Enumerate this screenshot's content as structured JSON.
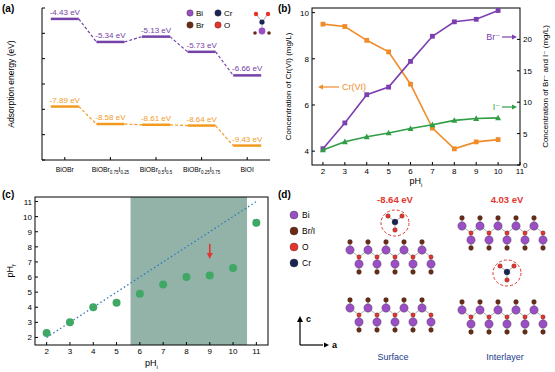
{
  "chart_data": [
    {
      "type": "level",
      "y_label": "Adsorption energy (eV)",
      "categories": [
        "BiOBr",
        "BiOBr0.75I0.25",
        "BiOBr0.5I0.5",
        "BiOBr0.25I0.75",
        "BiOI"
      ],
      "series": [
        {
          "color": "#7442a8",
          "values": [
            -4.43,
            -5.34,
            -5.13,
            -5.73,
            -6.66
          ],
          "value_labels": [
            "-4.43 eV",
            "-5.34 eV",
            "-5.13 eV",
            "-5.73 eV",
            "-6.66 eV"
          ]
        },
        {
          "color": "#f29a1f",
          "values": [
            -7.89,
            -8.58,
            -8.61,
            -8.64,
            -9.43
          ],
          "value_labels": [
            "-7.89 eV",
            "-8.58 eV",
            "-8.61 eV",
            "-8.64 eV",
            "-9.43 eV"
          ]
        }
      ],
      "ylim": [
        -10,
        -4
      ],
      "yticks": [
        -10,
        -9,
        -8,
        -7,
        -6,
        -5,
        -4
      ],
      "tick_labels": "x",
      "data_labels": true,
      "line_style": "dashed"
    },
    {
      "type": "line",
      "x_label": "pHi",
      "y_label": "Concentration of Cr(VI) (mg/L)",
      "y2_label": "Concentration of Br⁻ and I⁻ (mg/L)",
      "x": [
        2,
        3,
        4,
        5,
        6,
        7,
        8,
        9,
        10
      ],
      "series": [
        {
          "name": "Cr(VI)",
          "color": "#f08c28",
          "marker": "square",
          "values": [
            9.5,
            9.4,
            8.8,
            8.3,
            6.9,
            5.0,
            4.1,
            4.4,
            4.5
          ]
        },
        {
          "name": "Br⁻",
          "color": "#7b3fb0",
          "marker": "square",
          "axis": "y2",
          "values": [
            2.6,
            6.7,
            11.2,
            12.4,
            16.5,
            20.5,
            22.8,
            23.2,
            24.6
          ]
        },
        {
          "name": "I⁻",
          "color": "#2f9e44",
          "marker": "triangle",
          "axis": "y2",
          "values": [
            2.4,
            3.7,
            4.5,
            5.1,
            5.8,
            6.4,
            7.1,
            7.4,
            7.5
          ]
        }
      ],
      "xlim": [
        1.5,
        11
      ],
      "xticks": [
        2,
        3,
        4,
        5,
        6,
        7,
        8,
        9,
        10,
        11
      ],
      "ylim": [
        3.4,
        10.2
      ],
      "yticks": [
        4,
        6,
        8,
        10
      ],
      "y2lim": [
        0,
        25
      ],
      "y2ticks": [
        0,
        5,
        10,
        15,
        20
      ]
    },
    {
      "type": "scatter",
      "x_label": "pHi",
      "y_label": "pHf",
      "x": [
        2,
        3,
        4,
        5,
        6,
        7,
        8,
        9,
        10,
        11
      ],
      "series": [
        {
          "type": "scatter",
          "marker": "circle",
          "color": "#3fa865",
          "values": [
            2.3,
            3.0,
            4.0,
            4.3,
            4.9,
            5.5,
            6.0,
            6.1,
            6.6,
            9.6
          ]
        },
        {
          "type": "line",
          "line_style": "dotted",
          "color": "#2b7bba",
          "x": [
            2,
            11
          ],
          "values": [
            2,
            11
          ]
        }
      ],
      "band": [
        5.6,
        10.6
      ],
      "arrow": {
        "x": 9,
        "from": 8.2,
        "to": 7.2
      },
      "xlim": [
        1.5,
        11.5
      ],
      "xticks": [
        2,
        3,
        4,
        5,
        6,
        7,
        8,
        9,
        10,
        11
      ],
      "ylim": [
        1.5,
        11.3
      ],
      "yticks": [
        2,
        3,
        4,
        5,
        6,
        7,
        8,
        9,
        10,
        11
      ]
    }
  ],
  "figure": {
    "panel_labels": [
      "(a)",
      "(b)",
      "(c)",
      "(d)"
    ],
    "legend_a": [
      {
        "name": "Bi",
        "color": "#9b4fc4"
      },
      {
        "name": "Cr",
        "color": "#1a2454"
      },
      {
        "name": "Br",
        "color": "#6b2a12"
      },
      {
        "name": "O",
        "color": "#e8322b"
      }
    ],
    "panel_d": {
      "energies": [
        "-8.64 eV",
        "4.03 eV"
      ],
      "views": [
        "Surface",
        "Interlayer"
      ],
      "legend": [
        {
          "name": "Bi",
          "color": "#9b4fc4"
        },
        {
          "name": "Br/I",
          "color": "#6b2a12"
        },
        {
          "name": "O",
          "color": "#e8322b"
        },
        {
          "name": "Cr",
          "color": "#1a2454"
        }
      ],
      "axes": [
        "c",
        "a"
      ]
    }
  }
}
